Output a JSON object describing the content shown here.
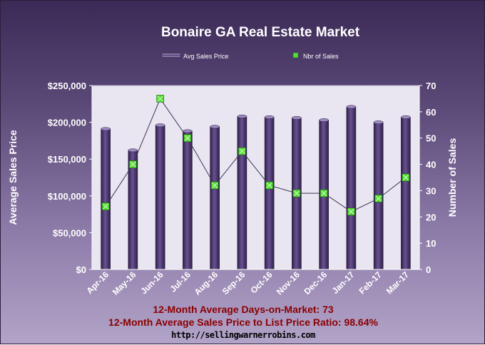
{
  "chart_data": {
    "type": "bar",
    "title": "Bonaire GA Real Estate Market",
    "categories": [
      "Apr-16",
      "May-16",
      "Jun-16",
      "Jul-16",
      "Aug-16",
      "Sep-16",
      "Oct-16",
      "Nov-16",
      "Dec-16",
      "Jan-17",
      "Feb-17",
      "Mar-17"
    ],
    "series": [
      {
        "name": "Avg Sales Price",
        "type": "bar",
        "axis": "left",
        "values": [
          191000,
          162000,
          196000,
          188000,
          194000,
          208000,
          207000,
          206000,
          203000,
          221000,
          200000,
          207000
        ],
        "color": "#4a3470"
      },
      {
        "name": "Nbr of Sales",
        "type": "line",
        "axis": "right",
        "values": [
          24,
          40,
          65,
          50,
          32,
          45,
          32,
          29,
          29,
          22,
          27,
          35
        ],
        "color": "#66ee44"
      }
    ],
    "ylabel_left": "Average Sales Price",
    "ylabel_right": "Number of Sales",
    "ylim_left": [
      0,
      250000
    ],
    "ylim_right": [
      0,
      70
    ],
    "yticks_left": [
      "$0",
      "$50,000",
      "$100,000",
      "$150,000",
      "$200,000",
      "$250,000"
    ],
    "yticks_right": [
      "0",
      "10",
      "20",
      "30",
      "40",
      "50",
      "60",
      "70"
    ],
    "grid": false,
    "legend": "top-center"
  },
  "footer": {
    "days_on_market": "12-Month Average Days-on-Market: 73",
    "price_ratio": "12-Month Average Sales Price to List Price Ratio: 98.64%",
    "url": "http://sellingwarnerrobins.com"
  }
}
